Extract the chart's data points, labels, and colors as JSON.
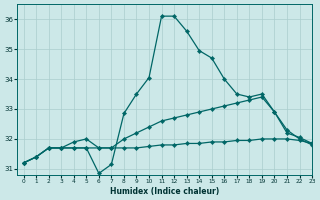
{
  "xlabel": "Humidex (Indice chaleur)",
  "bg_color": "#cce8e8",
  "grid_color": "#aacece",
  "line_color": "#006666",
  "xlim": [
    -0.5,
    23
  ],
  "ylim": [
    30.8,
    36.5
  ],
  "yticks": [
    31,
    32,
    33,
    34,
    35,
    36
  ],
  "xticks": [
    0,
    1,
    2,
    3,
    4,
    5,
    6,
    7,
    8,
    9,
    10,
    11,
    12,
    13,
    14,
    15,
    16,
    17,
    18,
    19,
    20,
    21,
    22,
    23
  ],
  "series": [
    {
      "x": [
        0,
        1,
        2,
        3,
        4,
        5,
        6,
        7,
        8,
        9,
        10,
        11,
        12,
        13,
        14,
        15,
        16,
        17,
        18,
        19,
        20,
        21,
        22,
        23
      ],
      "y": [
        31.2,
        31.4,
        31.7,
        31.7,
        31.7,
        31.7,
        30.85,
        31.15,
        32.85,
        33.5,
        34.05,
        36.1,
        36.1,
        35.6,
        34.95,
        34.7,
        34.0,
        33.5,
        33.4,
        33.5,
        32.9,
        32.3,
        32.0,
        31.8
      ]
    },
    {
      "x": [
        0,
        1,
        2,
        3,
        4,
        5,
        6,
        7,
        8,
        9,
        10,
        11,
        12,
        13,
        14,
        15,
        16,
        17,
        18,
        19,
        20,
        21,
        22,
        23
      ],
      "y": [
        31.2,
        31.4,
        31.7,
        31.7,
        31.9,
        32.0,
        31.7,
        31.7,
        32.0,
        32.2,
        32.4,
        32.6,
        32.7,
        32.8,
        32.9,
        33.0,
        33.1,
        33.2,
        33.3,
        33.4,
        32.9,
        32.2,
        32.05,
        31.85
      ]
    },
    {
      "x": [
        0,
        1,
        2,
        3,
        4,
        5,
        6,
        7,
        8,
        9,
        10,
        11,
        12,
        13,
        14,
        15,
        16,
        17,
        18,
        19,
        20,
        21,
        22,
        23
      ],
      "y": [
        31.2,
        31.4,
        31.7,
        31.7,
        31.7,
        31.7,
        31.7,
        31.7,
        31.7,
        31.7,
        31.75,
        31.8,
        31.8,
        31.85,
        31.85,
        31.9,
        31.9,
        31.95,
        31.95,
        32.0,
        32.0,
        32.0,
        31.95,
        31.85
      ]
    }
  ]
}
